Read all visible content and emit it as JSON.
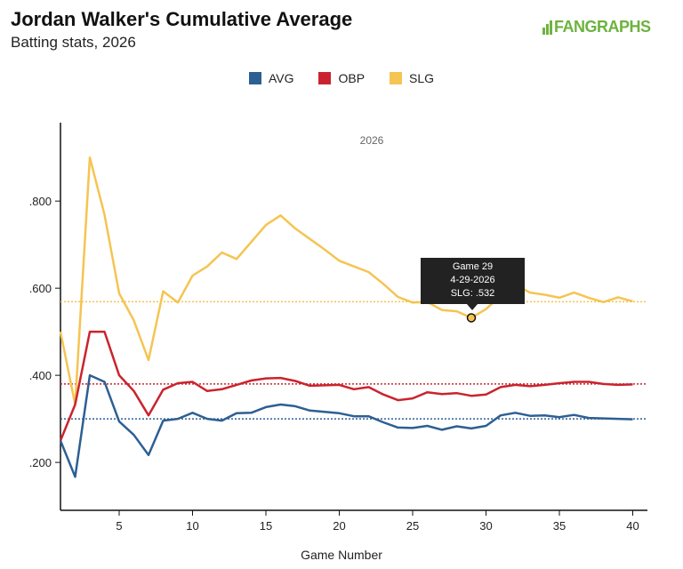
{
  "header": {
    "title": "Jordan Walker's Cumulative Average",
    "subtitle": "Batting stats, 2026",
    "logo": "FANGRAPHS"
  },
  "colors": {
    "avg": "#2d5f93",
    "obp": "#c9242e",
    "slg": "#f5c452"
  },
  "tooltip": {
    "line1": "Game 29",
    "line2": "4-29-2026",
    "line3": "SLG: .532"
  },
  "chart_data": {
    "type": "line",
    "title": "Jordan Walker's Cumulative Average",
    "subtitle": "Batting stats, 2026",
    "annotation": "2026",
    "xlabel": "Game Number",
    "ylabel": "",
    "xlim": [
      1,
      41
    ],
    "ylim": [
      0.09,
      0.98
    ],
    "xticks": [
      5,
      10,
      15,
      20,
      25,
      30,
      35,
      40
    ],
    "yticks": [
      0.2,
      0.4,
      0.6,
      0.8
    ],
    "ytick_labels": [
      ".200",
      ".400",
      ".600",
      ".800"
    ],
    "grid": false,
    "legend_position": "top",
    "x": [
      1,
      2,
      3,
      4,
      5,
      6,
      7,
      8,
      9,
      10,
      11,
      12,
      13,
      14,
      15,
      16,
      17,
      18,
      19,
      20,
      21,
      22,
      23,
      24,
      25,
      26,
      27,
      28,
      29,
      30,
      31,
      32,
      33,
      34,
      35,
      36,
      37,
      38,
      39,
      40
    ],
    "series": [
      {
        "name": "AVG",
        "color": "#2d5f93",
        "season_avg": 0.3,
        "values": [
          0.25,
          0.167,
          0.4,
          0.385,
          0.294,
          0.263,
          0.217,
          0.296,
          0.3,
          0.314,
          0.3,
          0.296,
          0.313,
          0.314,
          0.327,
          0.333,
          0.329,
          0.319,
          0.316,
          0.313,
          0.306,
          0.306,
          0.292,
          0.28,
          0.279,
          0.284,
          0.275,
          0.283,
          0.278,
          0.284,
          0.308,
          0.314,
          0.307,
          0.308,
          0.304,
          0.309,
          0.302,
          0.301,
          0.3,
          0.299
        ]
      },
      {
        "name": "OBP",
        "color": "#c9242e",
        "season_avg": 0.38,
        "values": [
          0.25,
          0.333,
          0.5,
          0.5,
          0.4,
          0.364,
          0.308,
          0.367,
          0.382,
          0.385,
          0.364,
          0.368,
          0.378,
          0.388,
          0.393,
          0.394,
          0.387,
          0.376,
          0.377,
          0.378,
          0.368,
          0.373,
          0.356,
          0.343,
          0.347,
          0.361,
          0.357,
          0.359,
          0.353,
          0.356,
          0.373,
          0.378,
          0.375,
          0.378,
          0.382,
          0.385,
          0.385,
          0.38,
          0.378,
          0.379
        ]
      },
      {
        "name": "SLG",
        "color": "#f5c452",
        "season_avg": 0.569,
        "values": [
          0.5,
          0.333,
          0.9,
          0.769,
          0.588,
          0.526,
          0.435,
          0.593,
          0.567,
          0.629,
          0.65,
          0.682,
          0.667,
          0.706,
          0.745,
          0.767,
          0.737,
          0.713,
          0.689,
          0.663,
          0.65,
          0.637,
          0.61,
          0.58,
          0.567,
          0.568,
          0.55,
          0.547,
          0.532,
          0.552,
          0.583,
          0.608,
          0.59,
          0.585,
          0.578,
          0.59,
          0.578,
          0.568,
          0.579,
          0.57
        ]
      }
    ],
    "highlight": {
      "series": "SLG",
      "x": 29,
      "y": 0.532,
      "date": "4-29-2026"
    }
  }
}
